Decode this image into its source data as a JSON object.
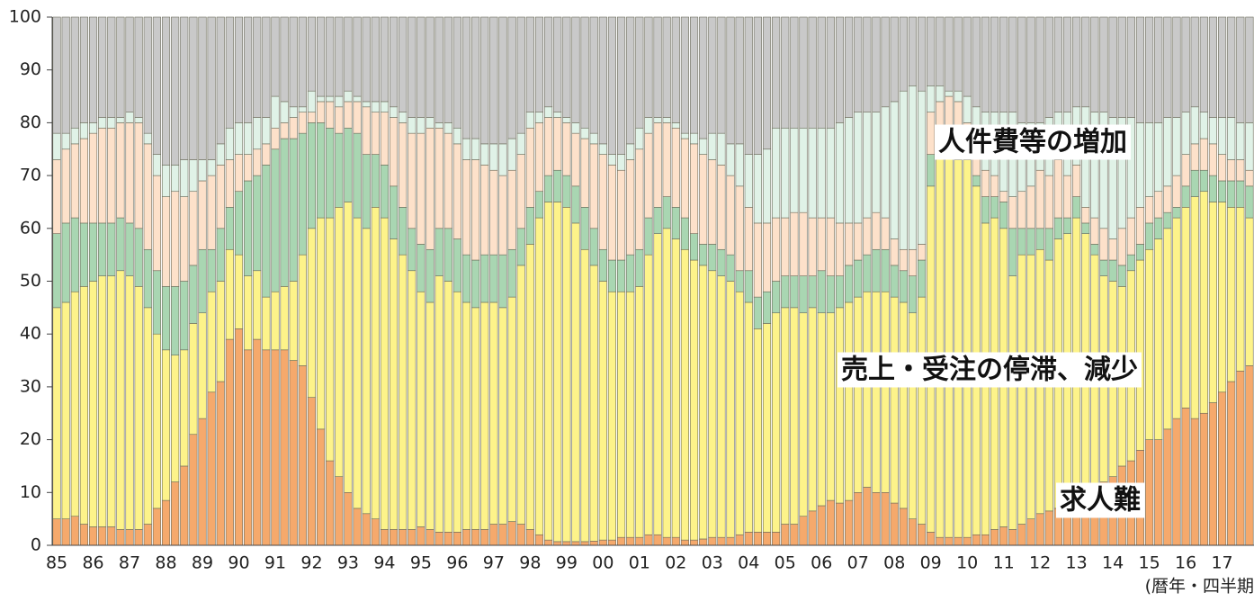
{
  "chart_data": {
    "type": "stacked_bar",
    "categories": [
      "85",
      null,
      null,
      null,
      "86",
      null,
      null,
      null,
      "87",
      null,
      null,
      null,
      "88",
      null,
      null,
      null,
      "89",
      null,
      null,
      null,
      "90",
      null,
      null,
      null,
      "91",
      null,
      null,
      null,
      "92",
      null,
      null,
      null,
      "93",
      null,
      null,
      null,
      "94",
      null,
      null,
      null,
      "95",
      null,
      null,
      null,
      "96",
      null,
      null,
      null,
      "97",
      null,
      null,
      null,
      "98",
      null,
      null,
      null,
      "99",
      null,
      null,
      null,
      "00",
      null,
      null,
      null,
      "01",
      null,
      null,
      null,
      "02",
      null,
      null,
      null,
      "03",
      null,
      null,
      null,
      "04",
      null,
      null,
      null,
      "05",
      null,
      null,
      null,
      "06",
      null,
      null,
      null,
      "07",
      null,
      null,
      null,
      "08",
      null,
      null,
      null,
      "09",
      null,
      null,
      null,
      "10",
      null,
      null,
      null,
      "11",
      null,
      null,
      null,
      "12",
      null,
      null,
      null,
      "13",
      null,
      null,
      null,
      "14",
      null,
      null,
      null,
      "15",
      null,
      null,
      null,
      "16",
      null,
      null,
      null,
      "17",
      null,
      null,
      null
    ],
    "x_label": "(暦年・四半期",
    "ylim": [
      0,
      100
    ],
    "yticks": [
      0,
      10,
      20,
      30,
      40,
      50,
      60,
      70,
      80,
      90,
      100
    ],
    "series": [
      {
        "name": "求人難",
        "color": "#f5a96c",
        "values": [
          5,
          5,
          5.5,
          4,
          3.5,
          3.5,
          3.5,
          3,
          3,
          3,
          4,
          7,
          8.5,
          12,
          15,
          21,
          24,
          29,
          31,
          39,
          41,
          37,
          39,
          37,
          37,
          37,
          35,
          34,
          28,
          22,
          16,
          13,
          10,
          7,
          6,
          5,
          3,
          3,
          3,
          3,
          3.5,
          3,
          2.5,
          2.5,
          2.5,
          3,
          3,
          3,
          4,
          4,
          4.5,
          4,
          3,
          2,
          1,
          0.7,
          0.7,
          0.7,
          0.7,
          0.8,
          1,
          1,
          1.5,
          1.5,
          1.5,
          2,
          2,
          1.5,
          1.5,
          1,
          1,
          1.2,
          1.5,
          1.5,
          1.5,
          2,
          2.5,
          2.5,
          2.5,
          2.5,
          4,
          4,
          5.5,
          6.5,
          7.5,
          8.5,
          8,
          8.5,
          10,
          11,
          10,
          10,
          8,
          7,
          5,
          4,
          2.5,
          1.5,
          1.5,
          1.5,
          1.5,
          2,
          2,
          3,
          3.5,
          3,
          4,
          5,
          6,
          6.5,
          7,
          8,
          9,
          10,
          11,
          12,
          13,
          15,
          16,
          18,
          20,
          20,
          22,
          24,
          26,
          24,
          25,
          27,
          29,
          31,
          33,
          34
        ]
      },
      {
        "name": "売上・受注の停滞、減少",
        "color": "#fdf38a",
        "values": [
          40,
          41,
          42.5,
          45,
          46.5,
          47.5,
          47.5,
          49,
          48,
          46,
          41,
          33,
          28.5,
          24,
          22,
          21,
          20,
          19,
          19,
          17,
          14,
          14,
          13,
          10,
          11,
          12,
          15,
          21,
          32,
          40,
          46,
          51,
          55,
          55,
          54,
          59,
          59,
          55,
          52,
          49,
          44.5,
          43,
          48.5,
          47.5,
          45.5,
          43,
          42,
          43,
          42,
          41,
          42.5,
          49,
          54,
          60,
          64,
          64.3,
          63.3,
          60.3,
          55.3,
          52.2,
          49,
          47,
          46.5,
          46.5,
          47.5,
          53,
          57,
          58.5,
          56.5,
          55,
          53,
          51.8,
          50.5,
          49.5,
          48.5,
          46,
          43.5,
          38.5,
          39.5,
          41.5,
          41,
          41,
          38.5,
          38.5,
          36.5,
          35.5,
          37,
          37.5,
          37,
          37,
          38,
          38,
          39,
          39,
          39,
          43,
          65.5,
          72.5,
          72.5,
          71.5,
          71.5,
          66,
          59,
          59,
          56.5,
          48,
          51,
          50,
          50,
          47.5,
          51,
          51,
          53,
          49,
          44,
          39,
          37,
          34,
          36,
          36,
          36,
          38,
          38,
          38,
          38,
          42,
          42,
          38,
          36,
          33,
          31,
          28
        ]
      },
      {
        "color": "#a9d6b2",
        "values": [
          14,
          15,
          14,
          12,
          11,
          10,
          10,
          10,
          10,
          11,
          11,
          12,
          12,
          13,
          13,
          11,
          12,
          8,
          10,
          8,
          12,
          18,
          18,
          25,
          27,
          28,
          27,
          23,
          20,
          18,
          17,
          14,
          14,
          16,
          14,
          10,
          10,
          10,
          9,
          8,
          9,
          10,
          9,
          10,
          10,
          9,
          9,
          9,
          9,
          10,
          9,
          7,
          7,
          5,
          5,
          6,
          6,
          7,
          8,
          7,
          6,
          6,
          6,
          7,
          7,
          7,
          5,
          6,
          6,
          6,
          5,
          4,
          5,
          5,
          5,
          4,
          6,
          6,
          6,
          6,
          6,
          6,
          7,
          6,
          8,
          7,
          6,
          7,
          7,
          7,
          8,
          8,
          6,
          6,
          7,
          7,
          6,
          1,
          2,
          1,
          1,
          2,
          5,
          4,
          5,
          9,
          5,
          5,
          4,
          6,
          4,
          3,
          4,
          2,
          2,
          3,
          4,
          4,
          3,
          3,
          5,
          4,
          3,
          2,
          4,
          5,
          4,
          5,
          4,
          5,
          5,
          6
        ]
      },
      {
        "color": "#fde1ca",
        "values": [
          14,
          14,
          14,
          16,
          17,
          18,
          18,
          18,
          19,
          20,
          20,
          18,
          17,
          18,
          16,
          14,
          13,
          14,
          12,
          9,
          7,
          5,
          5,
          4,
          4,
          3,
          4,
          4,
          2,
          4,
          5,
          5,
          5,
          6,
          9,
          8,
          10,
          13,
          16,
          18,
          21,
          23,
          19,
          18,
          18,
          18,
          19,
          17,
          16,
          15,
          15,
          14,
          15,
          13,
          11,
          10,
          10,
          10,
          13,
          16,
          18,
          18,
          17,
          18,
          19,
          16,
          16,
          14,
          15,
          15,
          17,
          17,
          16,
          16,
          15,
          16,
          12,
          14,
          13,
          12,
          11,
          12,
          12,
          11,
          10,
          11,
          10,
          8,
          7,
          7,
          7,
          6,
          5,
          4,
          5,
          3,
          8,
          9,
          9,
          10,
          6,
          5,
          5,
          4,
          2,
          6,
          7,
          8,
          11,
          10,
          11,
          8,
          6,
          3,
          5,
          6,
          4,
          7,
          7,
          7,
          5,
          5,
          5,
          6,
          6,
          5,
          6,
          6,
          5,
          4,
          4,
          3
        ]
      },
      {
        "name": "人件費等の増加",
        "color": "#e0f2e7",
        "values": [
          5,
          3,
          3,
          3,
          2,
          2,
          2,
          1,
          2,
          1,
          2,
          4,
          6,
          5,
          7,
          6,
          4,
          3,
          4,
          6,
          6,
          6,
          6,
          5,
          6,
          4,
          2,
          1,
          4,
          1,
          1,
          2,
          2,
          1,
          1,
          2,
          2,
          2,
          2,
          3,
          3,
          2,
          1,
          2,
          3,
          4,
          4,
          4,
          5,
          6,
          6,
          4,
          3,
          2,
          2,
          1,
          1,
          2,
          2,
          2,
          2,
          2,
          3,
          3,
          4,
          3,
          1,
          1,
          1,
          1,
          2,
          3,
          5,
          6,
          6,
          8,
          10,
          13,
          14,
          17,
          17,
          16,
          16,
          17,
          17,
          17,
          19,
          20,
          21,
          20,
          19,
          21,
          26,
          30,
          31,
          29,
          5,
          3,
          1,
          2,
          5,
          8,
          11,
          12,
          15,
          16,
          13,
          12,
          9,
          11,
          9,
          12,
          11,
          19,
          20,
          22,
          23,
          21,
          19,
          16,
          14,
          13,
          13,
          11,
          8,
          7,
          5,
          5,
          7,
          8,
          7,
          9
        ]
      },
      {
        "color": "#c9c9c9",
        "values": [
          22,
          22,
          21,
          20,
          20,
          19,
          19,
          19,
          18,
          19,
          22,
          26,
          28,
          28,
          27,
          27,
          27,
          27,
          24,
          21,
          20,
          20,
          19,
          19,
          15,
          16,
          17,
          17,
          14,
          15,
          15,
          15,
          14,
          15,
          16,
          16,
          16,
          17,
          18,
          19,
          19,
          19,
          20,
          20,
          21,
          23,
          23,
          24,
          24,
          24,
          23,
          22,
          18,
          18,
          17,
          18,
          19,
          20,
          21,
          22,
          24,
          26,
          26,
          24,
          21,
          19,
          19,
          19,
          20,
          22,
          22,
          23,
          22,
          22,
          24,
          24,
          26,
          26,
          25,
          21,
          21,
          21,
          21,
          21,
          21,
          21,
          20,
          19,
          18,
          18,
          18,
          17,
          16,
          14,
          13,
          14,
          13,
          13,
          14,
          14,
          15,
          17,
          18,
          18,
          18,
          18,
          20,
          20,
          20,
          19,
          18,
          18,
          17,
          17,
          18,
          18,
          19,
          19,
          19,
          20,
          20,
          20,
          19,
          19,
          18,
          17,
          18,
          19,
          19,
          19,
          20,
          20
        ]
      }
    ]
  }
}
